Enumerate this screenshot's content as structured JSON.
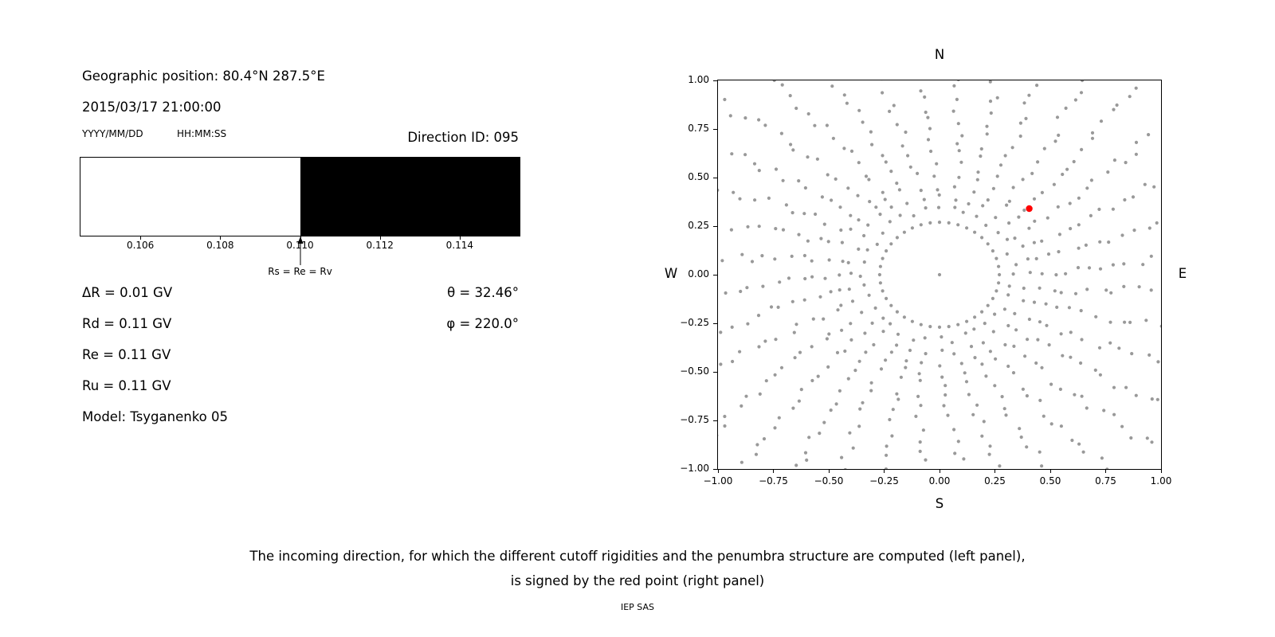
{
  "left_panel": {
    "geo_position": "Geographic position: 80.4°N 287.5°E",
    "datetime": "2015/03/17 21:00:00",
    "date_format_label": "YYYY/MM/DD",
    "time_format_label": "HH:MM:SS",
    "direction_id": "Direction ID: 095",
    "lines": [
      "ΔR = 0.01 GV",
      "Rd = 0.11 GV",
      "Re = 0.11 GV",
      "Ru = 0.11 GV",
      "Model: Tsyganenko 05"
    ],
    "theta": "θ = 32.46°",
    "phi": "φ = 220.0°"
  },
  "chart_data": [
    {
      "id": "penumbra",
      "type": "bar",
      "title": "",
      "xlim": [
        0.1045,
        0.1155
      ],
      "unit": "GV",
      "tick_values": [
        0.106,
        0.108,
        0.11,
        0.112,
        0.114
      ],
      "tick_labels": [
        "0.106",
        "0.108",
        "0.110",
        "0.112",
        "0.114"
      ],
      "segments": [
        {
          "from": 0.1045,
          "to": 0.11,
          "color": "#ffffff",
          "label": "allowed-band"
        },
        {
          "from": 0.11,
          "to": 0.1155,
          "color": "#000000",
          "label": "forbidden-band"
        }
      ],
      "marker": {
        "x": 0.11,
        "label": "Rs = Re = Rv"
      }
    },
    {
      "id": "incoming-directions",
      "type": "scatter",
      "title": "",
      "xlim": [
        -1,
        1
      ],
      "ylim": [
        -1,
        1
      ],
      "grid": false,
      "xtick_values": [
        -1,
        -0.75,
        -0.5,
        -0.25,
        0,
        0.25,
        0.5,
        0.75,
        1
      ],
      "xtick_labels": [
        "−1.00",
        "−0.75",
        "−0.50",
        "−0.25",
        "0.00",
        "0.25",
        "0.50",
        "0.75",
        "1.00"
      ],
      "ytick_values": [
        1,
        0.75,
        0.5,
        0.25,
        0,
        -0.25,
        -0.5,
        -0.75,
        -1
      ],
      "ytick_labels": [
        "1.00",
        "0.75",
        "0.50",
        "0.25",
        "0.00",
        "−0.25",
        "−0.50",
        "−0.75",
        "−1.00"
      ],
      "compass": {
        "top": "N",
        "bottom": "S",
        "left": "W",
        "right": "E"
      },
      "dot_color": "#999999",
      "dot_radius_px": 2.1,
      "generator": {
        "azimuth_count": 36,
        "radial_start": 0.34,
        "radial_step": 0.057,
        "radial_count": 18,
        "curvature_deg": 8,
        "jitter_radial": 0.02,
        "jitter_azimuth_deg": 1.6,
        "inner_ring_radius": 0.27,
        "inner_ring_count": 40,
        "center_dot": true
      },
      "red_point": {
        "x": 0.405,
        "y": 0.34,
        "color": "#ff0000",
        "radius_px": 4.2
      }
    }
  ],
  "caption": {
    "line1": "The incoming direction, for which the different cutoff rigidities and the penumbra structure are computed (left panel),",
    "line2": "is signed by the red point (right panel)"
  },
  "footer": {
    "text": "IEP SAS"
  }
}
